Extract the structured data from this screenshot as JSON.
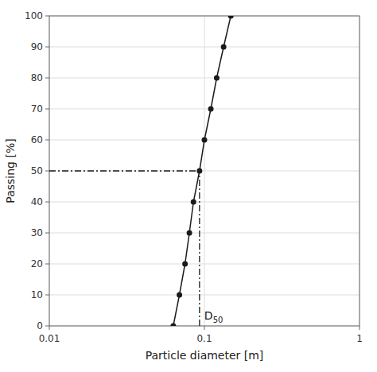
{
  "chart_data": {
    "type": "line",
    "xlabel": "Particle diameter [m]",
    "ylabel": "Passing [%]",
    "x": [
      0.063,
      0.069,
      0.075,
      0.08,
      0.085,
      0.093,
      0.1,
      0.11,
      0.12,
      0.133,
      0.148
    ],
    "values": [
      0,
      10,
      20,
      30,
      40,
      50,
      60,
      70,
      80,
      90,
      100
    ],
    "color": "#1a1a1a",
    "marker": "circle",
    "log": "x",
    "xlim": [
      0.01,
      1.0
    ],
    "ylim": [
      0,
      100
    ],
    "xticks": [
      0.01,
      0.1,
      1
    ],
    "yticks": [
      0,
      10,
      20,
      30,
      40,
      50,
      60,
      70,
      80,
      90,
      100
    ],
    "grid": true,
    "reference_point": {
      "x": 0.093,
      "y": 50,
      "line_style": "dashdot",
      "label_main": "D",
      "label_sub": "50"
    }
  }
}
